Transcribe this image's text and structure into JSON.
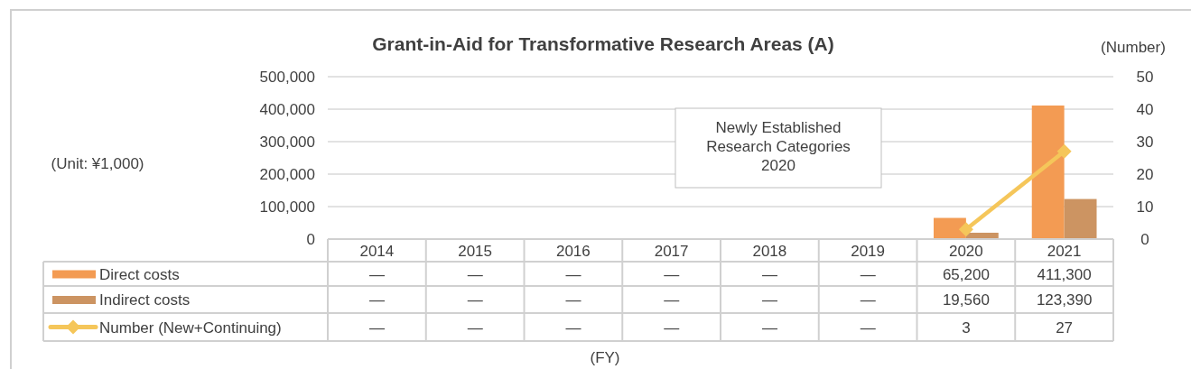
{
  "chart_data": {
    "type": "bar",
    "title": "Grant-in-Aid for Transformative Research Areas (A)",
    "categories": [
      "2014",
      "2015",
      "2016",
      "2017",
      "2018",
      "2019",
      "2020",
      "2021"
    ],
    "series": [
      {
        "name": "Direct costs",
        "color": "#f39b53",
        "values": [
          null,
          null,
          null,
          null,
          null,
          null,
          65200,
          411300
        ],
        "value_labels": [
          "—",
          "—",
          "—",
          "—",
          "—",
          "—",
          "65,200",
          "411,300"
        ]
      },
      {
        "name": "Indirect costs",
        "color": "#cc9462",
        "values": [
          null,
          null,
          null,
          null,
          null,
          null,
          19560,
          123390
        ],
        "value_labels": [
          "—",
          "—",
          "—",
          "—",
          "—",
          "—",
          "19,560",
          "123,390"
        ]
      },
      {
        "name": "Number (New+Continuing)",
        "type": "line",
        "axis": "y2",
        "color": "#f5c65a",
        "marker": "diamond",
        "values": [
          null,
          null,
          null,
          null,
          null,
          null,
          3,
          27
        ],
        "value_labels": [
          "—",
          "—",
          "—",
          "—",
          "—",
          "—",
          "3",
          "27"
        ]
      }
    ],
    "ylim": [
      0,
      500000
    ],
    "yticks": [
      {
        "value": 0,
        "label": "0"
      },
      {
        "value": 100000,
        "label": "100,000"
      },
      {
        "value": 200000,
        "label": "200,000"
      },
      {
        "value": 300000,
        "label": "300,000"
      },
      {
        "value": 400000,
        "label": "400,000"
      },
      {
        "value": 500000,
        "label": "500,000"
      }
    ],
    "y2lim": [
      0,
      50
    ],
    "y2ticks": [
      0,
      10,
      20,
      30,
      40,
      50
    ],
    "y2label": "(Number)",
    "annotations": [
      "Newly Established\nResearch Categories\n2020",
      "(Unit: ¥1,000)",
      "(FY)"
    ],
    "grid": "y",
    "legend": "bottom left"
  }
}
